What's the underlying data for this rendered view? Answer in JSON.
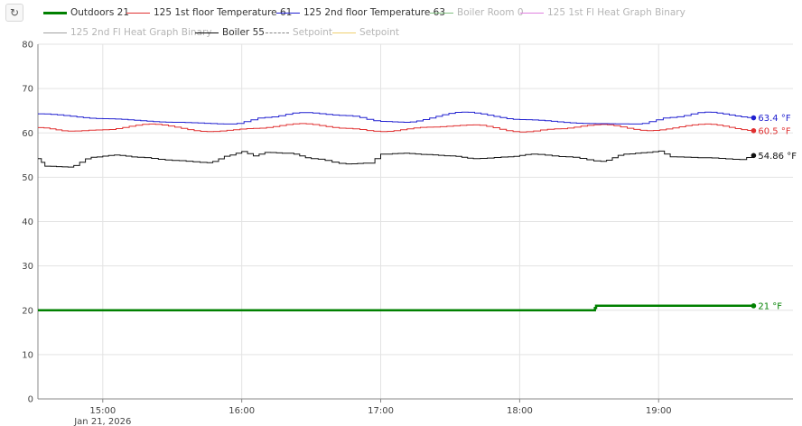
{
  "toolbar": {
    "refresh_icon": "refresh-icon",
    "refresh_glyph": "↻"
  },
  "chart_data": {
    "type": "line",
    "title": "",
    "xlabel": "",
    "ylabel": "",
    "x_ticks": [
      "15:00",
      "16:00",
      "17:00",
      "18:00",
      "19:00"
    ],
    "x_date_label": "Jan 21, 2026",
    "x_range": [
      "14:32",
      "19:58"
    ],
    "ylim": [
      0,
      80
    ],
    "y_ticks": [
      0,
      10,
      20,
      30,
      40,
      50,
      60,
      70,
      80
    ],
    "grid": true,
    "legend_position": "top",
    "series": [
      {
        "name": "Outdoors 21",
        "color": "#008000",
        "visible": true,
        "thick": true,
        "end_label": "21 °F",
        "points": [
          [
            "14:32",
            20
          ],
          [
            "18:32",
            20
          ],
          [
            "18:33",
            21
          ],
          [
            "19:41",
            21
          ]
        ]
      },
      {
        "name": "125 1st floor Temperature 61",
        "color": "#e03030",
        "visible": true,
        "end_label": "60.5 °F",
        "points": [
          [
            "14:32",
            61.2
          ],
          [
            "14:45",
            60.4
          ],
          [
            "15:00",
            60.7
          ],
          [
            "15:20",
            62.0
          ],
          [
            "15:45",
            60.3
          ],
          [
            "16:05",
            61.0
          ],
          [
            "16:25",
            62.1
          ],
          [
            "16:45",
            61.0
          ],
          [
            "17:00",
            60.3
          ],
          [
            "17:20",
            61.3
          ],
          [
            "17:40",
            61.8
          ],
          [
            "18:00",
            60.2
          ],
          [
            "18:15",
            60.9
          ],
          [
            "18:35",
            61.9
          ],
          [
            "18:55",
            60.5
          ],
          [
            "19:20",
            62.0
          ],
          [
            "19:41",
            60.5
          ]
        ]
      },
      {
        "name": "125 2nd floor Temperature 63",
        "color": "#2020d0",
        "visible": true,
        "end_label": "63.4 °F",
        "points": [
          [
            "14:32",
            64.3
          ],
          [
            "15:00",
            63.2
          ],
          [
            "15:30",
            62.4
          ],
          [
            "15:55",
            62.0
          ],
          [
            "16:10",
            63.5
          ],
          [
            "16:25",
            64.6
          ],
          [
            "16:45",
            63.9
          ],
          [
            "17:00",
            62.6
          ],
          [
            "17:10",
            62.4
          ],
          [
            "17:35",
            64.7
          ],
          [
            "18:00",
            63.0
          ],
          [
            "18:30",
            62.1
          ],
          [
            "18:50",
            62.0
          ],
          [
            "19:05",
            63.5
          ],
          [
            "19:20",
            64.7
          ],
          [
            "19:41",
            63.4
          ]
        ]
      },
      {
        "name": "Boiler Room 0",
        "color": "#7fbf7f",
        "visible": false,
        "points": []
      },
      {
        "name": "125 1st Fl Heat Graph Binary",
        "color": "#e080e0",
        "visible": false,
        "points": []
      },
      {
        "name": "125 2nd Fl Heat Graph Binary",
        "color": "#a0a0a0",
        "visible": false,
        "points": []
      },
      {
        "name": "Boiler 55",
        "color": "#111111",
        "visible": true,
        "end_label": "54.86 °F",
        "points": [
          [
            "14:32",
            54.2
          ],
          [
            "14:35",
            52.5
          ],
          [
            "14:45",
            52.3
          ],
          [
            "14:55",
            54.5
          ],
          [
            "15:05",
            55.0
          ],
          [
            "15:15",
            54.5
          ],
          [
            "15:30",
            53.8
          ],
          [
            "15:45",
            53.3
          ],
          [
            "15:55",
            55.0
          ],
          [
            "16:00",
            55.8
          ],
          [
            "16:05",
            54.8
          ],
          [
            "16:10",
            55.6
          ],
          [
            "16:20",
            55.4
          ],
          [
            "16:30",
            54.2
          ],
          [
            "16:45",
            53.0
          ],
          [
            "16:55",
            53.2
          ],
          [
            "17:00",
            55.2
          ],
          [
            "17:10",
            55.4
          ],
          [
            "17:20",
            55.1
          ],
          [
            "17:30",
            54.8
          ],
          [
            "17:40",
            54.2
          ],
          [
            "17:55",
            54.6
          ],
          [
            "18:05",
            55.2
          ],
          [
            "18:20",
            54.6
          ],
          [
            "18:35",
            53.6
          ],
          [
            "18:45",
            55.2
          ],
          [
            "18:55",
            55.6
          ],
          [
            "19:00",
            55.9
          ],
          [
            "19:05",
            54.6
          ],
          [
            "19:20",
            54.4
          ],
          [
            "19:35",
            54.0
          ],
          [
            "19:41",
            54.9
          ]
        ]
      },
      {
        "name": "Setpoint",
        "color": "#888888",
        "visible": false,
        "dashed": true,
        "points": []
      },
      {
        "name": "Setpoint",
        "color": "#f0d070",
        "visible": false,
        "points": []
      }
    ]
  }
}
